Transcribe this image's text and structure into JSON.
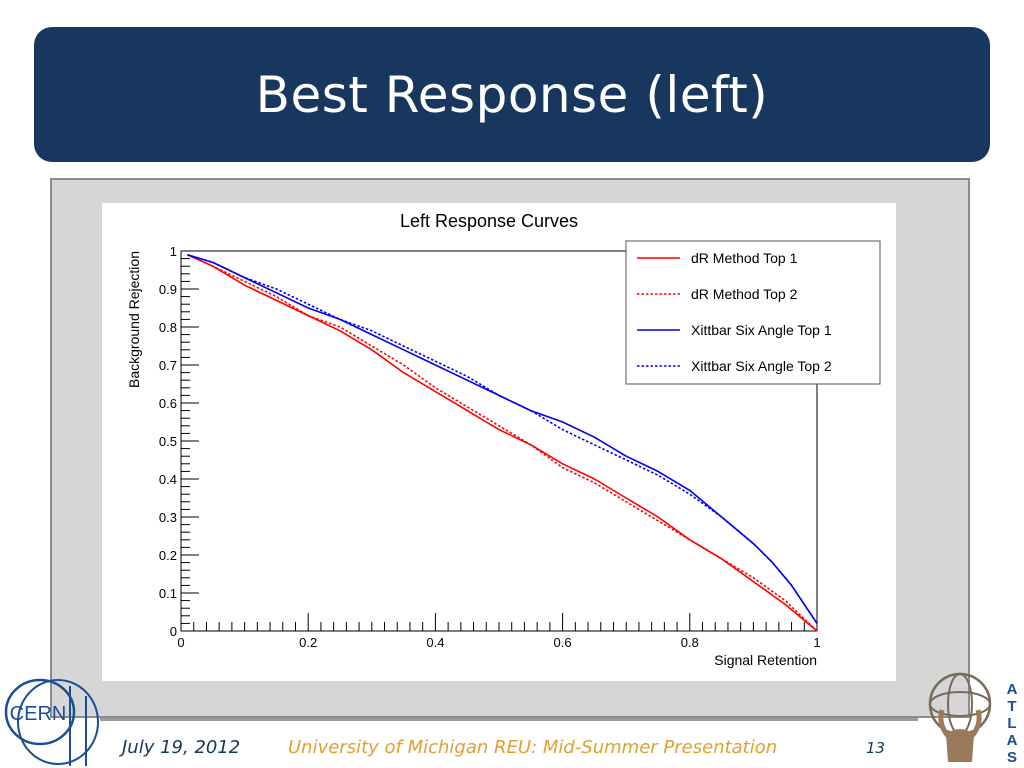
{
  "slide": {
    "title": "Best Response (left)",
    "footer_date": "July 19, 2012",
    "footer_org": "University of Michigan REU:  Mid-Summer Presentation",
    "page_number": "13",
    "cern_logo_text": "CERN",
    "atlas_logo_letters": [
      "A",
      "T",
      "L",
      "A",
      "S"
    ],
    "colors": {
      "banner": "#17375e",
      "footer_org": "#e0a030",
      "footer_text": "#17375e"
    }
  },
  "chart_data": {
    "type": "line",
    "title": "Left Response Curves",
    "xlabel": "Signal Retention",
    "ylabel": "Background Rejection",
    "xlim": [
      0,
      1
    ],
    "ylim": [
      0,
      1
    ],
    "x_ticks": [
      "0",
      "0.2",
      "0.4",
      "0.6",
      "0.8",
      "1"
    ],
    "y_ticks": [
      "0",
      "0.1",
      "0.2",
      "0.3",
      "0.4",
      "0.5",
      "0.6",
      "0.7",
      "0.8",
      "0.9",
      "1"
    ],
    "grid": false,
    "legend_position": "top-right",
    "series": [
      {
        "name": "dR Method Top 1",
        "color": "#ff0000",
        "dash": "solid",
        "x": [
          0.01,
          0.05,
          0.1,
          0.15,
          0.2,
          0.25,
          0.3,
          0.35,
          0.4,
          0.45,
          0.5,
          0.55,
          0.6,
          0.65,
          0.7,
          0.75,
          0.8,
          0.85,
          0.9,
          0.95,
          1.0
        ],
        "y": [
          0.99,
          0.96,
          0.91,
          0.87,
          0.83,
          0.79,
          0.74,
          0.68,
          0.63,
          0.58,
          0.53,
          0.49,
          0.44,
          0.4,
          0.35,
          0.3,
          0.24,
          0.19,
          0.13,
          0.07,
          0.0
        ]
      },
      {
        "name": "dR Method Top 2",
        "color": "#ff0000",
        "dash": "dotted",
        "x": [
          0.01,
          0.05,
          0.1,
          0.15,
          0.2,
          0.25,
          0.3,
          0.35,
          0.4,
          0.45,
          0.5,
          0.55,
          0.6,
          0.65,
          0.7,
          0.75,
          0.8,
          0.85,
          0.9,
          0.95,
          1.0
        ],
        "y": [
          0.99,
          0.96,
          0.92,
          0.88,
          0.83,
          0.8,
          0.75,
          0.7,
          0.64,
          0.59,
          0.54,
          0.49,
          0.43,
          0.39,
          0.34,
          0.29,
          0.24,
          0.19,
          0.14,
          0.08,
          0.0
        ]
      },
      {
        "name": "Xittbar Six Angle Top 1",
        "color": "#0000ee",
        "dash": "solid",
        "x": [
          0.01,
          0.05,
          0.1,
          0.15,
          0.2,
          0.25,
          0.3,
          0.35,
          0.4,
          0.45,
          0.5,
          0.55,
          0.6,
          0.65,
          0.7,
          0.75,
          0.8,
          0.85,
          0.9,
          0.93,
          0.96,
          0.98,
          1.0
        ],
        "y": [
          0.99,
          0.97,
          0.93,
          0.89,
          0.85,
          0.82,
          0.78,
          0.74,
          0.7,
          0.66,
          0.62,
          0.58,
          0.55,
          0.51,
          0.46,
          0.42,
          0.37,
          0.3,
          0.23,
          0.18,
          0.12,
          0.07,
          0.02
        ]
      },
      {
        "name": "Xittbar Six Angle Top 2",
        "color": "#0000ee",
        "dash": "dotted",
        "x": [
          0.01,
          0.05,
          0.1,
          0.15,
          0.2,
          0.25,
          0.3,
          0.35,
          0.4,
          0.45,
          0.5,
          0.55,
          0.6,
          0.65,
          0.7,
          0.75,
          0.8,
          0.85,
          0.9,
          0.93,
          0.96,
          0.98,
          1.0
        ],
        "y": [
          0.99,
          0.97,
          0.93,
          0.9,
          0.86,
          0.82,
          0.79,
          0.75,
          0.71,
          0.67,
          0.62,
          0.58,
          0.53,
          0.49,
          0.45,
          0.41,
          0.36,
          0.3,
          0.23,
          0.18,
          0.12,
          0.07,
          0.02
        ]
      }
    ]
  }
}
